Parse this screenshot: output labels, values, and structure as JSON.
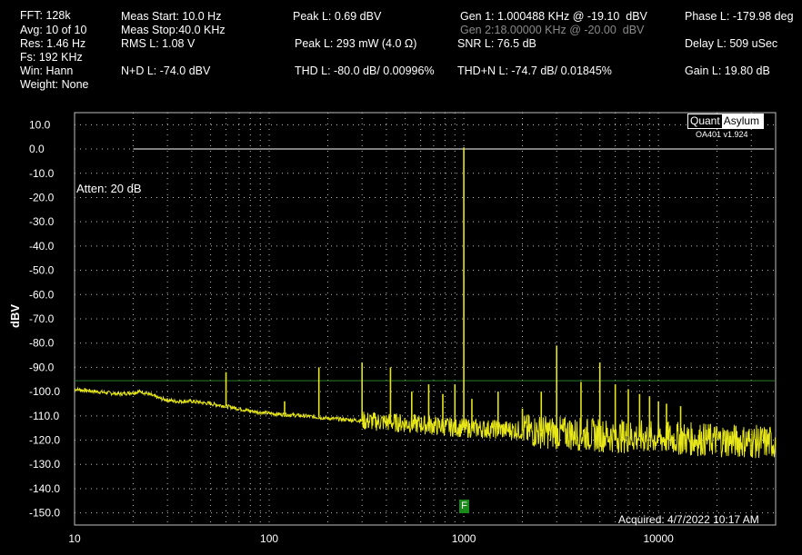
{
  "header": {
    "col1": [
      "FFT: 128k",
      "Avg: 10 of 10",
      "Res: 1.46 Hz",
      "Fs: 192 KHz",
      "Win: Hann",
      "Weight: None"
    ],
    "col2": [
      "Meas Start: 10.0 Hz",
      "Meas Stop:40.0 KHz",
      "RMS L: 1.08 V",
      "N+D L: -74.0 dBV"
    ],
    "col3": [
      "Peak L: 0.69 dBV",
      "Peak L: 293 mW (4.0 Ω)",
      "THD L: -80.0 dB/ 0.00996%"
    ],
    "col4": [
      "Gen 1: 1.000488 KHz @ -19.10  dBV",
      "Gen 2:18.00000 KHz @ -20.00  dBV",
      "SNR L: 76.5 dB",
      "THD+N L: -74.7 dB/ 0.01845%"
    ],
    "col5": [
      "Phase L: -179.98 deg",
      "Delay L: 509 uSec",
      "Gain L: 19.80 dB"
    ]
  },
  "logo": {
    "part1": "Quant",
    "part2": "Asylum",
    "version": "OA401 v1.924"
  },
  "annotations": {
    "atten": "Atten: 20 dB",
    "acquired": "Acquired: 4/7/2022  10:17 AM",
    "marker": "F"
  },
  "colors": {
    "trace": "#e6e619",
    "grid": "#c0c0c0",
    "threshold": "#2e7d2e",
    "ref_line": "#ffffff"
  },
  "chart_data": {
    "type": "line",
    "xlabel": "",
    "ylabel": "dBV",
    "x_scale": "log",
    "xlim": [
      10,
      40000
    ],
    "ylim": [
      -155,
      15
    ],
    "x_ticks": [
      10,
      100,
      1000,
      10000
    ],
    "x_tick_labels": [
      "10",
      "100",
      "1000",
      "10000"
    ],
    "y_ticks": [
      10,
      0,
      -10,
      -20,
      -30,
      -40,
      -50,
      -60,
      -70,
      -80,
      -90,
      -100,
      -110,
      -120,
      -130,
      -140,
      -150
    ],
    "y_tick_labels": [
      "10.0",
      "0.0",
      "-10.0",
      "-20.0",
      "-30.0",
      "-40.0",
      "-50.0",
      "-60.0",
      "-70.0",
      "-80.0",
      "-90.0",
      "-100.0",
      "-110.0",
      "-120.0",
      "-130.0",
      "-140.0",
      "-150.0"
    ],
    "grid": true,
    "reference_line_dbv": 0,
    "threshold_line_dbv": -95.5,
    "noise_floor": [
      {
        "x": 10,
        "y": -99
      },
      {
        "x": 13,
        "y": -100
      },
      {
        "x": 17,
        "y": -101
      },
      {
        "x": 22,
        "y": -100
      },
      {
        "x": 28,
        "y": -103
      },
      {
        "x": 33,
        "y": -104
      },
      {
        "x": 40,
        "y": -104
      },
      {
        "x": 50,
        "y": -105
      },
      {
        "x": 60,
        "y": -106
      },
      {
        "x": 80,
        "y": -108
      },
      {
        "x": 100,
        "y": -109
      },
      {
        "x": 150,
        "y": -110
      },
      {
        "x": 200,
        "y": -111
      },
      {
        "x": 300,
        "y": -112
      },
      {
        "x": 500,
        "y": -113
      },
      {
        "x": 700,
        "y": -114
      },
      {
        "x": 1000,
        "y": -115
      },
      {
        "x": 2000,
        "y": -116
      },
      {
        "x": 3000,
        "y": -117
      },
      {
        "x": 5000,
        "y": -118
      },
      {
        "x": 10000,
        "y": -119
      },
      {
        "x": 20000,
        "y": -120
      },
      {
        "x": 40000,
        "y": -121
      }
    ],
    "peaks": [
      {
        "x": 60,
        "y": -92
      },
      {
        "x": 120,
        "y": -104
      },
      {
        "x": 180,
        "y": -90
      },
      {
        "x": 300,
        "y": -88
      },
      {
        "x": 420,
        "y": -90
      },
      {
        "x": 540,
        "y": -100
      },
      {
        "x": 660,
        "y": -97
      },
      {
        "x": 780,
        "y": -101
      },
      {
        "x": 900,
        "y": -97
      },
      {
        "x": 1000,
        "y": 0.7
      },
      {
        "x": 1100,
        "y": -103
      },
      {
        "x": 1500,
        "y": -100
      },
      {
        "x": 2000,
        "y": -107
      },
      {
        "x": 2500,
        "y": -100
      },
      {
        "x": 3000,
        "y": -81
      },
      {
        "x": 3500,
        "y": -112
      },
      {
        "x": 4000,
        "y": -96
      },
      {
        "x": 5000,
        "y": -88
      },
      {
        "x": 6000,
        "y": -97
      },
      {
        "x": 7000,
        "y": -99
      },
      {
        "x": 8000,
        "y": -101
      },
      {
        "x": 9000,
        "y": -102
      },
      {
        "x": 10000,
        "y": -104
      },
      {
        "x": 11000,
        "y": -105
      },
      {
        "x": 13000,
        "y": -106
      }
    ]
  }
}
